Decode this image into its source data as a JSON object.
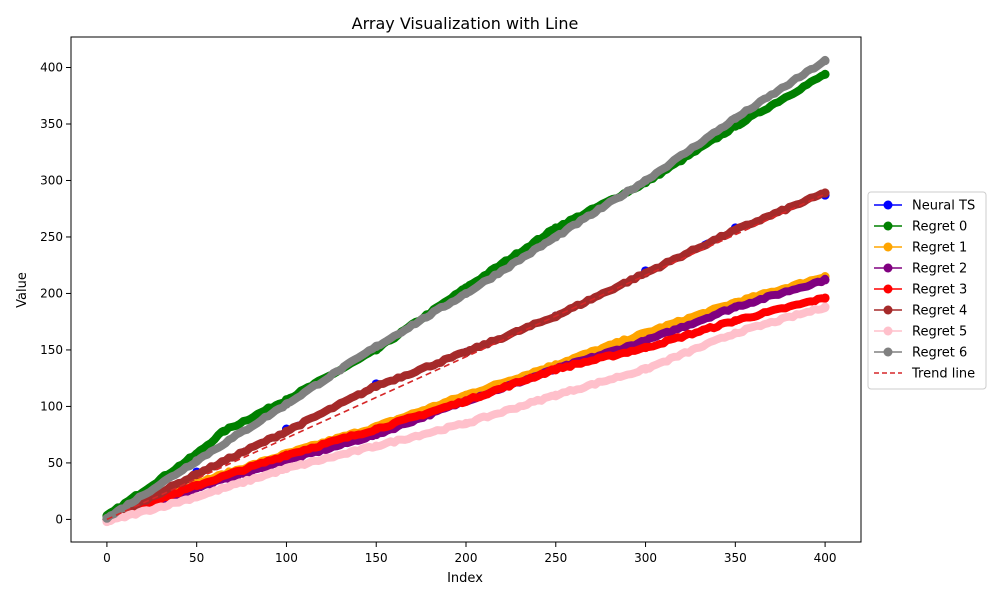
{
  "chart_data": {
    "type": "line",
    "title": "Array Visualization with Line",
    "xlabel": "Index",
    "ylabel": "Value",
    "xlim": [
      -20,
      420
    ],
    "ylim": [
      -20,
      427
    ],
    "xticks": [
      0,
      50,
      100,
      150,
      200,
      250,
      300,
      350,
      400
    ],
    "yticks": [
      0,
      50,
      100,
      150,
      200,
      250,
      300,
      350,
      400
    ],
    "grid": false,
    "legend_position": "center right, outside plot",
    "series": [
      {
        "name": "Neural TS",
        "color": "#0000ff",
        "marker": "circle",
        "linestyle": "solid",
        "x": [
          0,
          50,
          100,
          150,
          200,
          250,
          300,
          350,
          400
        ],
        "y": [
          0,
          42,
          80,
          120,
          148,
          180,
          220,
          258,
          287
        ]
      },
      {
        "name": "Regret 0",
        "color": "#008000",
        "marker": "circle",
        "linestyle": "solid",
        "x": [
          0,
          50,
          65,
          100,
          150,
          200,
          250,
          300,
          350,
          400
        ],
        "y": [
          3,
          58,
          78,
          106,
          150,
          205,
          258,
          298,
          348,
          394
        ]
      },
      {
        "name": "Regret 1",
        "color": "#ffa500",
        "marker": "circle",
        "linestyle": "solid",
        "x": [
          0,
          50,
          100,
          150,
          200,
          250,
          300,
          350,
          400
        ],
        "y": [
          0,
          32,
          58,
          82,
          110,
          137,
          165,
          192,
          215
        ]
      },
      {
        "name": "Regret 2",
        "color": "#800080",
        "marker": "circle",
        "linestyle": "solid",
        "x": [
          0,
          50,
          100,
          150,
          200,
          250,
          300,
          350,
          400
        ],
        "y": [
          0,
          28,
          52,
          75,
          105,
          133,
          158,
          188,
          212
        ]
      },
      {
        "name": "Regret 3",
        "color": "#ff0000",
        "marker": "circle",
        "linestyle": "solid",
        "x": [
          0,
          50,
          100,
          150,
          200,
          250,
          300,
          350,
          400
        ],
        "y": [
          0,
          30,
          57,
          80,
          105,
          133,
          152,
          176,
          196
        ]
      },
      {
        "name": "Regret 4",
        "color": "#a52a2a",
        "marker": "circle",
        "linestyle": "solid",
        "x": [
          0,
          50,
          100,
          150,
          200,
          250,
          300,
          350,
          400
        ],
        "y": [
          0,
          40,
          78,
          118,
          148,
          180,
          218,
          256,
          289
        ]
      },
      {
        "name": "Regret 5",
        "color": "#ffc0cb",
        "marker": "circle",
        "linestyle": "solid",
        "x": [
          0,
          50,
          100,
          150,
          200,
          250,
          300,
          350,
          400
        ],
        "y": [
          -2,
          20,
          45,
          65,
          85,
          110,
          133,
          165,
          188
        ]
      },
      {
        "name": "Regret 6",
        "color": "#808080",
        "marker": "circle",
        "linestyle": "solid",
        "x": [
          0,
          50,
          100,
          150,
          200,
          250,
          300,
          350,
          400
        ],
        "y": [
          1,
          52,
          102,
          153,
          200,
          250,
          300,
          355,
          406
        ]
      },
      {
        "name": "Trend line",
        "color": "#d62728",
        "marker": "none",
        "linestyle": "dashed",
        "x": [
          0,
          400
        ],
        "y": [
          0,
          288
        ]
      }
    ]
  }
}
